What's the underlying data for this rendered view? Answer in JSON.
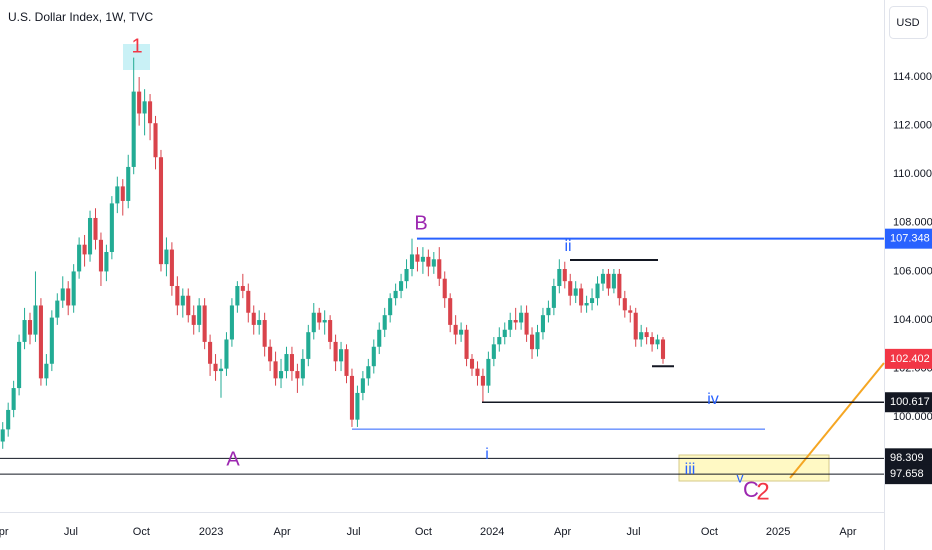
{
  "chart_data": {
    "type": "candlestick",
    "title": "U.S. Dollar Index, 1W, TVC",
    "currency": "USD",
    "xlim": [
      -0.5,
      161.5
    ],
    "xticks": [
      {
        "value": -0.5,
        "label": "Apr"
      },
      {
        "value": 12.5,
        "label": "Jul"
      },
      {
        "value": 25.4,
        "label": "Oct"
      },
      {
        "value": 38.2,
        "label": "2023"
      },
      {
        "value": 51.2,
        "label": "Apr"
      },
      {
        "value": 64.3,
        "label": "Jul"
      },
      {
        "value": 77.1,
        "label": "Oct"
      },
      {
        "value": 89.7,
        "label": "2024"
      },
      {
        "value": 102.6,
        "label": "Apr"
      },
      {
        "value": 115.6,
        "label": "Jul"
      },
      {
        "value": 129.5,
        "label": "Oct"
      },
      {
        "value": 142.1,
        "label": "2025"
      },
      {
        "value": 154.9,
        "label": "Apr"
      }
    ],
    "ylim": [
      96.1,
      117.17
    ],
    "yticks": [
      {
        "value": 100,
        "label": "100.000"
      },
      {
        "value": 102,
        "label": "102.000"
      },
      {
        "value": 104,
        "label": "104.000"
      },
      {
        "value": 106,
        "label": "106.000"
      },
      {
        "value": 108,
        "label": "108.000"
      },
      {
        "value": 110,
        "label": "110.000"
      },
      {
        "value": 112,
        "label": "112.000"
      },
      {
        "value": 114,
        "label": "114.000"
      }
    ],
    "grid": false,
    "up_color": "#22ab94",
    "down_color": "#d9434b",
    "open": [
      99.0,
      99.5,
      100.3,
      101.2,
      103.1,
      104.0,
      103.4,
      104.6,
      101.6,
      102.2,
      104.1,
      104.8,
      105.3,
      104.6,
      106.0,
      107.1,
      106.7,
      108.2,
      107.3,
      106.0,
      106.8,
      108.8,
      109.5,
      108.9,
      110.3,
      113.4,
      112.5,
      113.0,
      112.1,
      110.7,
      106.3,
      106.9,
      105.4,
      104.6,
      105.0,
      104.2,
      103.8,
      104.6,
      103.1,
      102.2,
      101.9,
      102.0,
      103.2,
      104.6,
      105.4,
      105.2,
      104.3,
      103.8,
      104.0,
      102.9,
      102.3,
      101.6,
      101.9,
      102.6,
      101.9,
      101.6,
      102.4,
      103.5,
      104.3,
      103.9,
      104.0,
      103.1,
      102.3,
      102.8,
      101.7,
      99.9,
      101.0,
      101.6,
      102.1,
      102.9,
      103.6,
      104.2,
      104.9,
      105.2,
      105.6,
      106.1,
      106.7,
      106.4,
      106.6,
      106.2,
      106.5,
      105.7,
      104.9,
      103.8,
      103.4,
      103.6,
      102.4,
      102.0,
      101.7,
      101.3,
      102.4,
      103.0,
      103.3,
      103.6,
      104.0,
      103.9,
      104.3,
      103.4,
      102.8,
      103.5,
      104.2,
      104.5,
      105.4,
      106.1,
      105.6,
      105.0,
      105.3,
      104.6,
      104.7,
      104.9,
      105.5,
      105.9,
      105.3,
      105.9,
      104.9,
      104.4,
      104.3,
      103.2,
      103.5,
      103.3,
      103.0,
      103.2
    ],
    "high": [
      99.8,
      100.6,
      101.5,
      103.4,
      104.5,
      104.3,
      106.0,
      104.9,
      102.6,
      104.4,
      105.1,
      105.8,
      105.6,
      106.3,
      107.4,
      107.5,
      108.5,
      108.6,
      107.6,
      107.1,
      109.1,
      109.9,
      109.8,
      110.8,
      114.8,
      114.0,
      113.5,
      113.3,
      112.4,
      111.0,
      107.4,
      107.2,
      105.8,
      105.3,
      105.3,
      104.6,
      104.9,
      104.9,
      103.4,
      102.6,
      102.4,
      103.5,
      104.9,
      105.6,
      105.9,
      105.5,
      104.6,
      104.4,
      104.3,
      103.2,
      102.7,
      102.4,
      102.9,
      102.9,
      102.2,
      102.8,
      103.8,
      104.7,
      104.5,
      104.4,
      104.2,
      103.4,
      103.1,
      103.0,
      102.0,
      101.3,
      101.9,
      102.4,
      103.2,
      103.9,
      104.5,
      105.1,
      105.5,
      105.9,
      106.5,
      107.35,
      107.0,
      107.0,
      106.9,
      106.8,
      107.0,
      106.0,
      105.1,
      104.2,
      103.9,
      103.8,
      102.6,
      102.3,
      102.0,
      102.7,
      103.3,
      103.7,
      103.9,
      104.3,
      104.5,
      104.6,
      104.6,
      103.7,
      103.8,
      104.5,
      104.8,
      105.7,
      106.5,
      106.4,
      105.9,
      105.6,
      105.5,
      105.0,
      105.3,
      105.8,
      106.1,
      106.1,
      106.1,
      106.1,
      105.2,
      104.6,
      104.5,
      103.8,
      103.7,
      103.5,
      103.4,
      103.3
    ],
    "low": [
      98.7,
      99.2,
      100.0,
      100.9,
      102.8,
      103.0,
      103.1,
      101.3,
      101.3,
      101.9,
      103.8,
      104.5,
      104.2,
      104.3,
      105.7,
      106.2,
      106.4,
      106.9,
      105.4,
      105.6,
      106.5,
      108.4,
      108.3,
      108.6,
      110.0,
      112.0,
      111.6,
      111.4,
      110.2,
      106.0,
      105.8,
      105.0,
      104.2,
      104.1,
      103.9,
      103.4,
      103.5,
      102.8,
      101.7,
      101.5,
      100.8,
      101.7,
      102.9,
      104.3,
      104.9,
      103.9,
      103.4,
      103.4,
      102.5,
      101.9,
      101.3,
      101.2,
      101.6,
      101.5,
      101.0,
      101.3,
      102.1,
      103.2,
      103.6,
      103.4,
      102.8,
      101.9,
      101.9,
      101.4,
      99.6,
      99.6,
      100.7,
      101.3,
      101.8,
      102.6,
      103.3,
      103.9,
      104.6,
      104.9,
      105.3,
      105.8,
      106.0,
      105.9,
      105.8,
      105.9,
      105.4,
      104.5,
      103.5,
      103.0,
      103.1,
      102.1,
      101.7,
      101.3,
      100.62,
      101.0,
      102.1,
      102.7,
      103.0,
      103.3,
      103.6,
      103.6,
      103.1,
      102.4,
      102.5,
      103.2,
      103.9,
      104.2,
      105.1,
      105.3,
      104.6,
      104.7,
      104.3,
      104.3,
      104.4,
      104.6,
      105.2,
      105.0,
      105.1,
      104.6,
      104.1,
      103.9,
      102.9,
      102.9,
      103.0,
      102.7,
      102.8,
      102.2
    ],
    "close": [
      99.5,
      100.3,
      101.2,
      103.1,
      104.0,
      103.4,
      104.6,
      101.6,
      102.2,
      104.1,
      104.8,
      105.3,
      104.6,
      106.0,
      107.1,
      106.7,
      108.2,
      107.3,
      106.0,
      106.8,
      108.8,
      109.5,
      108.9,
      110.3,
      113.4,
      112.5,
      113.0,
      112.1,
      110.7,
      106.3,
      106.9,
      105.4,
      104.6,
      105.0,
      104.2,
      103.8,
      104.6,
      103.1,
      102.2,
      101.9,
      102.0,
      103.2,
      104.6,
      105.4,
      105.2,
      104.3,
      103.8,
      104.0,
      102.9,
      102.3,
      101.6,
      101.9,
      102.6,
      101.9,
      101.6,
      102.4,
      103.5,
      104.3,
      103.9,
      104.0,
      103.1,
      102.3,
      102.8,
      101.7,
      99.9,
      101.0,
      101.6,
      102.1,
      102.9,
      103.6,
      104.2,
      104.9,
      105.2,
      105.6,
      106.1,
      106.7,
      106.4,
      106.6,
      106.2,
      106.5,
      105.7,
      104.9,
      103.8,
      103.4,
      103.6,
      102.4,
      102.0,
      101.7,
      101.3,
      102.4,
      103.0,
      103.3,
      103.6,
      104.0,
      103.9,
      104.3,
      103.4,
      102.8,
      103.5,
      104.2,
      104.5,
      105.4,
      106.1,
      105.6,
      105.0,
      105.3,
      104.6,
      104.7,
      104.9,
      105.5,
      105.9,
      105.3,
      105.9,
      104.9,
      104.4,
      104.3,
      103.2,
      103.5,
      103.3,
      103.0,
      103.2,
      102.4
    ],
    "last_price": {
      "value": 102.402,
      "color": "#f23645"
    },
    "price_lines": [
      {
        "value": 107.348,
        "color": "#2962ff"
      },
      {
        "value": 100.617,
        "color": "#131722"
      },
      {
        "value": 98.309,
        "color": "#131722"
      },
      {
        "value": 97.658,
        "color": "#131722"
      }
    ],
    "trend_lines": [
      {
        "value": 106.47,
        "color": "#131722"
      },
      {
        "value": 102.1,
        "color": "#131722"
      },
      {
        "value": 99.51,
        "color": "#2962ff"
      }
    ],
    "wave_labels": [
      {
        "text": "1",
        "color": "#f23645"
      },
      {
        "text": "A",
        "color": "#9c27b0"
      },
      {
        "text": "B",
        "color": "#9c27b0"
      },
      {
        "text": "i",
        "color": "#2962ff"
      },
      {
        "text": "ii",
        "color": "#2962ff"
      },
      {
        "text": "iii",
        "color": "#2962ff"
      },
      {
        "text": "iv",
        "color": "#2962ff"
      },
      {
        "text": "v",
        "color": "#2962ff"
      },
      {
        "text": "C",
        "color": "#9c27b0"
      },
      {
        "text": "2",
        "color": "#f23645"
      }
    ]
  }
}
